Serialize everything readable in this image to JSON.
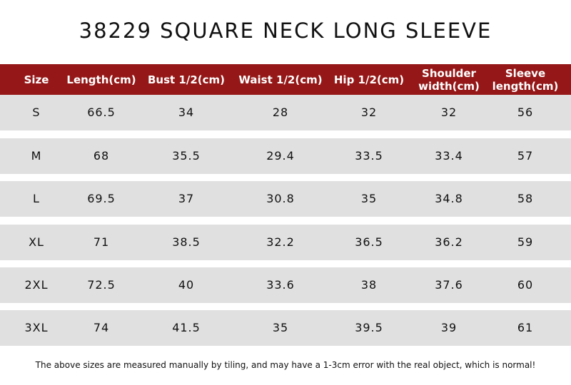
{
  "title": "38229 SQUARE NECK LONG SLEEVE",
  "header": {
    "colors": {
      "header_bg": "#951717",
      "row_bg": "#e0e0e0"
    },
    "columns": [
      [
        "Size"
      ],
      [
        "Length(cm)"
      ],
      [
        "Bust 1/2(cm)"
      ],
      [
        "Waist  1/2(cm)"
      ],
      [
        "Hip 1/2(cm)"
      ],
      [
        "Shoulder",
        "width(cm)"
      ],
      [
        "Sleeve",
        "length(cm)"
      ]
    ]
  },
  "rows": [
    [
      "S",
      "66.5",
      "34",
      "28",
      "32",
      "32",
      "56"
    ],
    [
      "M",
      "68",
      "35.5",
      "29.4",
      "33.5",
      "33.4",
      "57"
    ],
    [
      "L",
      "69.5",
      "37",
      "30.8",
      "35",
      "34.8",
      "58"
    ],
    [
      "XL",
      "71",
      "38.5",
      "32.2",
      "36.5",
      "36.2",
      "59"
    ],
    [
      "2XL",
      "72.5",
      "40",
      "33.6",
      "38",
      "37.6",
      "60"
    ],
    [
      "3XL",
      "74",
      "41.5",
      "35",
      "39.5",
      "39",
      "61"
    ]
  ],
  "note": "The above sizes are measured manually by tiling, and may have a 1-3cm error with the real object, which is normal!"
}
